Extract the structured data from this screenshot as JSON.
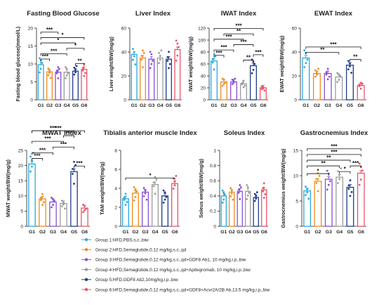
{
  "colors": [
    "#2aa8e0",
    "#f28c1e",
    "#8a4fd6",
    "#9c9c9c",
    "#1f3c8a",
    "#e8546a"
  ],
  "legend": [
    "Group 1:HFD,PBS,s.c.,biw",
    "Group 2:HFD,Semaglutide,0.12 mg/kg,s.c.,qd",
    "Group 3:HFD,Semaglutide,0.12 mg/kg,s.c.,qd+GDF8 Ab1, 10 mg/kg,i.p.,biw",
    "Group 4:HFD,Semaglutide,0.12 mg/kg,s.c.,qd+Apitegromab, 10 mg/kg,i.p.,biw",
    "Group 5:HFD,GDF8 Ab2,10mg/kg,i.p.,biw",
    "Group 6:HFD,Semaglutide,0.12 mg/kg,s.c.,qd+GDF8+Acvr2A/2B Ab,13.5 mg/kg,i.p.,biw"
  ],
  "chart_data": [
    {
      "type": "bar",
      "title": "Fasting Blood Glucose",
      "ylabel": "Fasting blood glucose(mmol/L)",
      "categories": [
        "G1",
        "G2",
        "G3",
        "G4",
        "G5",
        "G6"
      ],
      "values": [
        9.8,
        7.8,
        7.7,
        7.7,
        8.0,
        8.5
      ],
      "ylim": [
        0,
        20
      ],
      "yticks": [
        0,
        5,
        10,
        15,
        20
      ],
      "brackets": [
        {
          "a": 1,
          "b": 2,
          "label": "***"
        },
        {
          "a": 5,
          "b": 6,
          "label": "**"
        },
        {
          "a": 1,
          "b": 4,
          "label": "***"
        },
        {
          "a": 4,
          "b": 6,
          "label": "*"
        },
        {
          "a": 1,
          "b": 5,
          "label": "*"
        },
        {
          "a": 1,
          "b": 6,
          "label": "*"
        },
        {
          "a": 1,
          "b": 3,
          "label": "***"
        }
      ]
    },
    {
      "type": "bar",
      "title": "Liver Index",
      "ylabel": "Liver weight/BW(mg/g)",
      "categories": [
        "G1",
        "G2",
        "G3",
        "G4",
        "G5",
        "G6"
      ],
      "values": [
        38,
        35,
        34,
        35,
        34,
        42
      ],
      "ylim": [
        0,
        60
      ],
      "yticks": [
        0,
        20,
        40,
        60
      ],
      "brackets": []
    },
    {
      "type": "bar",
      "title": "IWAT Index",
      "ylabel": "IWAT weight/BW(mg/g)",
      "categories": [
        "G1",
        "G2",
        "G3",
        "G4",
        "G5",
        "G6"
      ],
      "values": [
        65,
        30,
        30,
        27,
        57,
        20
      ],
      "ylim": [
        0,
        120
      ],
      "yticks": [
        0,
        20,
        40,
        60,
        80,
        100,
        120
      ],
      "brackets": [
        {
          "a": 1,
          "b": 2,
          "label": "***"
        },
        {
          "a": 4,
          "b": 5,
          "label": "**"
        },
        {
          "a": 5,
          "b": 6,
          "label": "***"
        },
        {
          "a": 1,
          "b": 3,
          "label": "***"
        },
        {
          "a": 3,
          "b": 5,
          "label": "***"
        },
        {
          "a": 1,
          "b": 4,
          "label": "***"
        },
        {
          "a": 2,
          "b": 5,
          "label": "**"
        },
        {
          "a": 1,
          "b": 6,
          "label": "***"
        }
      ]
    },
    {
      "type": "bar",
      "title": "EWAT Index",
      "ylabel": "EWAT weight/BW(mg/g)",
      "categories": [
        "G1",
        "G2",
        "G3",
        "G4",
        "G5",
        "G6"
      ],
      "values": [
        35,
        22,
        22,
        19,
        29,
        12
      ],
      "ylim": [
        0,
        60
      ],
      "yticks": [
        0,
        20,
        40,
        60
      ],
      "brackets": [
        {
          "a": 1,
          "b": 4,
          "label": "**"
        },
        {
          "a": 5,
          "b": 6,
          "label": "**"
        },
        {
          "a": 1,
          "b": 6,
          "label": "***"
        }
      ]
    },
    {
      "type": "bar",
      "title": "MWAT Index",
      "ylabel": "MWAT weight/BW(mg/g)",
      "categories": [
        "G1",
        "G2",
        "G3",
        "G4",
        "G5",
        "G6"
      ],
      "values": [
        20.5,
        9,
        8,
        7.5,
        18,
        6
      ],
      "ylim": [
        0,
        25
      ],
      "yticks": [
        0,
        5,
        10,
        15,
        20,
        25
      ],
      "brackets": [
        {
          "a": 1,
          "b": 2,
          "label": "***"
        },
        {
          "a": 5,
          "b": 6,
          "label": "***"
        },
        {
          "a": 1,
          "b": 3,
          "label": "***"
        },
        {
          "a": 3,
          "b": 5,
          "label": "***"
        },
        {
          "a": 1,
          "b": 4,
          "label": "***"
        },
        {
          "a": 4,
          "b": 5,
          "label": "***"
        },
        {
          "a": 1,
          "b": 5,
          "label": "***"
        },
        {
          "a": 1,
          "b": 6,
          "label": "***"
        }
      ]
    },
    {
      "type": "bar",
      "title": "Tibialis anterior muscle Index",
      "ylabel": "TAM weight/BW(mg/g)",
      "categories": [
        "G1",
        "G2",
        "G3",
        "G4",
        "G5",
        "G6"
      ],
      "values": [
        2.9,
        3.5,
        3.6,
        4.4,
        3.2,
        4.5
      ],
      "ylim": [
        0,
        8
      ],
      "yticks": [
        0,
        2,
        4,
        6,
        8
      ],
      "brackets": [
        {
          "a": 1,
          "b": 6,
          "label": "*"
        }
      ]
    },
    {
      "type": "bar",
      "title": "Soleus Index",
      "ylabel": "Soleus weight/BW(mg/g)",
      "categories": [
        "G1",
        "G2",
        "G3",
        "G4",
        "G5",
        "G6"
      ],
      "values": [
        0.4,
        0.45,
        0.46,
        0.46,
        0.38,
        0.48
      ],
      "ylim": [
        0,
        1.0
      ],
      "yticks": [
        0.0,
        0.2,
        0.4,
        0.6,
        0.8,
        1.0
      ],
      "brackets": []
    },
    {
      "type": "bar",
      "title": "Gastrocnemius Index",
      "ylabel": "Gastrocnemius weight/BW(mg/g)",
      "categories": [
        "G1",
        "G2",
        "G3",
        "G4",
        "G5",
        "G6"
      ],
      "values": [
        7,
        8.9,
        9.3,
        9.7,
        7.7,
        10.5
      ],
      "ylim": [
        0,
        15
      ],
      "yticks": [
        0,
        5,
        10,
        15
      ],
      "brackets": [
        {
          "a": 1,
          "b": 3,
          "label": "*"
        },
        {
          "a": 4,
          "b": 5,
          "label": "*"
        },
        {
          "a": 1,
          "b": 4,
          "label": "**"
        },
        {
          "a": 5,
          "b": 6,
          "label": "***"
        },
        {
          "a": 1,
          "b": 5,
          "label": "**"
        },
        {
          "a": 1,
          "b": 6,
          "label": "***"
        },
        {
          "a": 1,
          "b": 6,
          "label": "***"
        }
      ]
    }
  ]
}
